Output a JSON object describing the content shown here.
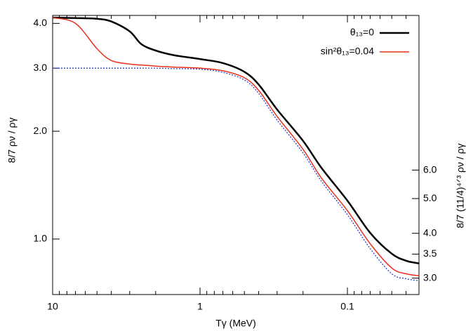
{
  "chart_data": {
    "type": "line",
    "xlabel": "Tγ (MeV)",
    "ylabel": "8/7 ρν / ργ",
    "y2label": "8/7 (11/4)⁴ᐟ³ ρν / ργ",
    "xscale": "log",
    "yscale": "log",
    "legend": "upper right",
    "grid": false,
    "xlim": [
      10,
      0.0327
    ],
    "xticks": [
      10,
      1,
      0.1
    ],
    "xminorticks": [
      9,
      8,
      7,
      6,
      5,
      4,
      3,
      2,
      0.9,
      0.8,
      0.7,
      0.6,
      0.5,
      0.4,
      0.3,
      0.2,
      0.09,
      0.08,
      0.07,
      0.06,
      0.05,
      0.04
    ],
    "ylim": [
      0.7,
      4.21
    ],
    "yticks": [
      {
        "value": 1,
        "label": "1.0"
      },
      {
        "value": 2,
        "label": "2.0"
      },
      {
        "value": 3,
        "label": "3.0"
      },
      {
        "value": 4,
        "label": "4.0"
      }
    ],
    "y2lim": [
      2.7,
      16.2
    ],
    "y2ticks": [
      {
        "value": 3,
        "label": "3.0"
      },
      {
        "value": 3.5,
        "label": "3.5"
      },
      {
        "value": 4,
        "label": "4.0"
      },
      {
        "value": 5,
        "label": "5.0"
      },
      {
        "value": 6,
        "label": "6.0"
      }
    ],
    "x": [
      10,
      7,
      5,
      4,
      3,
      2.5,
      2,
      1.5,
      1,
      0.7,
      0.5,
      0.4,
      0.3,
      0.2,
      0.15,
      0.1,
      0.07,
      0.05,
      0.04,
      0.0327
    ],
    "series": [
      {
        "name": "θ₁₃=0",
        "color": "#000000",
        "width": 2.5,
        "dash": "none",
        "values": [
          4.15,
          4.14,
          4.12,
          4.05,
          3.8,
          3.5,
          3.36,
          3.26,
          3.18,
          3.1,
          2.93,
          2.7,
          2.3,
          1.88,
          1.58,
          1.28,
          1.04,
          0.91,
          0.87,
          0.855
        ]
      },
      {
        "name": "sin²θ₁₃=0.04",
        "color": "#e8301a",
        "width": 1.5,
        "dash": "none",
        "values": [
          4.15,
          4.0,
          3.4,
          3.15,
          3.08,
          3.06,
          3.04,
          3.02,
          3.0,
          2.95,
          2.82,
          2.6,
          2.2,
          1.78,
          1.48,
          1.2,
          0.97,
          0.83,
          0.8,
          0.79
        ]
      },
      {
        "color": "#2a3fd0",
        "width": 1.3,
        "dash": "2 2",
        "values": [
          3.0,
          3.0,
          3.0,
          3.0,
          3.0,
          3.0,
          3.0,
          2.99,
          2.98,
          2.92,
          2.78,
          2.55,
          2.15,
          1.74,
          1.45,
          1.17,
          0.94,
          0.8,
          0.775,
          0.765
        ]
      }
    ]
  }
}
